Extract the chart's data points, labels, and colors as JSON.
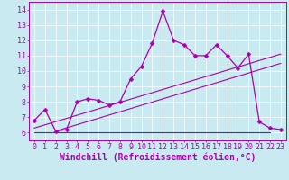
{
  "title": "",
  "xlabel": "Windchill (Refroidissement éolien,°C)",
  "ylabel": "",
  "bg_color": "#c8eaf0",
  "line_color": "#aa00aa",
  "xlim": [
    -0.5,
    23.5
  ],
  "ylim": [
    5.5,
    14.5
  ],
  "xticks": [
    0,
    1,
    2,
    3,
    4,
    5,
    6,
    7,
    8,
    9,
    10,
    11,
    12,
    13,
    14,
    15,
    16,
    17,
    18,
    19,
    20,
    21,
    22,
    23
  ],
  "yticks": [
    6,
    7,
    8,
    9,
    10,
    11,
    12,
    13,
    14
  ],
  "data_y": [
    6.8,
    7.5,
    6.1,
    6.2,
    8.0,
    8.2,
    8.1,
    7.8,
    8.0,
    9.5,
    10.3,
    11.8,
    13.9,
    12.0,
    11.7,
    11.0,
    11.0,
    11.7,
    11.0,
    10.2,
    11.1,
    6.7,
    6.3,
    6.2
  ],
  "line1_x": [
    0,
    22
  ],
  "line1_y": [
    6.0,
    6.0
  ],
  "line2_x": [
    0,
    23
  ],
  "line2_y": [
    6.3,
    11.1
  ],
  "line3_x": [
    2,
    23
  ],
  "line3_y": [
    6.1,
    10.5
  ],
  "marker": "D",
  "marker_size": 2.5,
  "font_family": "monospace",
  "tick_fontsize": 6.0,
  "label_fontsize": 7.0,
  "grid_color": "#b0d8e0",
  "spine_color": "#aa00aa"
}
